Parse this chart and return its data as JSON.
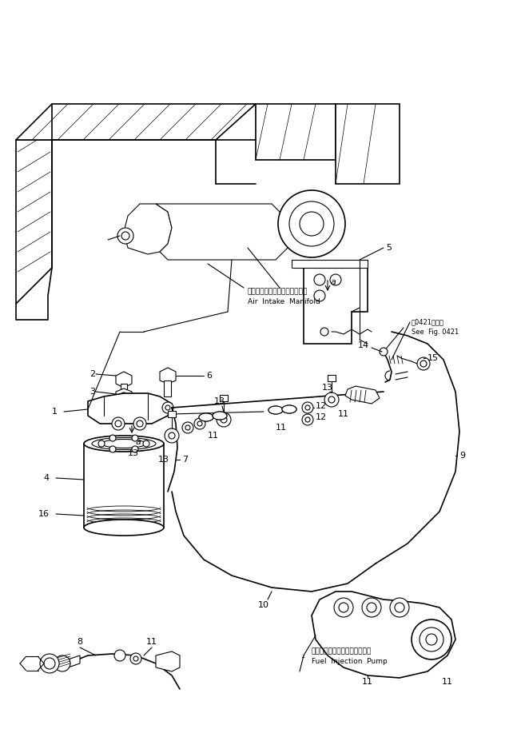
{
  "bg_color": "#ffffff",
  "line_color": "#000000",
  "fig_width": 6.42,
  "fig_height": 9.27,
  "dpi": 100,
  "labels": {
    "air_intake_jp": "エアーインテークマニホールド",
    "air_intake_en": "Air  Intake  Manifold",
    "fuel_pump_jp": "フェルインジェクションポンプ",
    "fuel_pump_en": "Fuel  Injection  Pump",
    "see_fig_jp": "困0421図参照",
    "see_fig_en": "See  Fig. 0421"
  }
}
